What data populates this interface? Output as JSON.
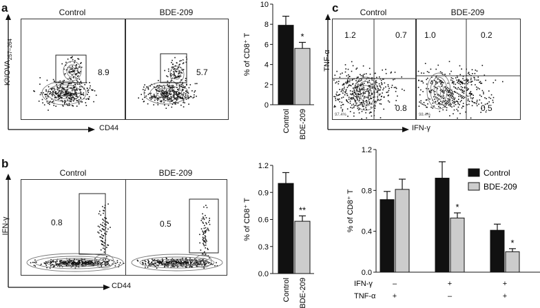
{
  "panels": {
    "a": {
      "letter": "a",
      "flow": {
        "titles": [
          "Control",
          "BDE-209"
        ],
        "gate_values": [
          "8.9",
          "5.7"
        ],
        "ylabel": "Kᵇ/OVA",
        "ylabel_sub": "257–264",
        "xlabel": "CD44"
      }
    },
    "b": {
      "letter": "b",
      "flow": {
        "titles": [
          "Control",
          "BDE-209"
        ],
        "gate_values": [
          "0.8",
          "0.5"
        ],
        "ylabel": "IFN-γ",
        "xlabel": "CD44"
      }
    },
    "c": {
      "letter": "c",
      "flow": {
        "titles": [
          "Control",
          "BDE-209"
        ],
        "quad_values": [
          [
            "1.2",
            "0.7",
            "0.8"
          ],
          [
            "1.0",
            "0.2",
            "0.5"
          ]
        ],
        "small_labels": [
          "97.4%",
          "98.4%"
        ],
        "ylabel": "TNF-α",
        "xlabel": "IFN-γ"
      },
      "group_rows": [
        {
          "label": "IFN-γ",
          "values": [
            "–",
            "+",
            "+"
          ]
        },
        {
          "label": "TNF-α",
          "values": [
            "+",
            "–",
            "+"
          ]
        }
      ]
    }
  },
  "colors": {
    "control": "#111111",
    "bde": "#cccccc"
  },
  "chart_data": [
    {
      "type": "bar",
      "panel": "a",
      "categories": [
        "Control",
        "BDE-209"
      ],
      "values": [
        7.9,
        5.6
      ],
      "errors": [
        0.9,
        0.6
      ],
      "ylabel": "% of CD8⁺ T",
      "ylim": [
        0,
        10
      ],
      "yticks": [
        "0",
        "2",
        "4",
        "6",
        "8",
        "10"
      ],
      "significance": [
        {
          "index": 1,
          "label": "*"
        }
      ]
    },
    {
      "type": "bar",
      "panel": "b",
      "categories": [
        "Control",
        "BDE-209"
      ],
      "values": [
        1.0,
        0.58
      ],
      "errors": [
        0.12,
        0.06
      ],
      "ylabel": "% of CD8⁺ T",
      "ylim": [
        0,
        1.2
      ],
      "yticks": [
        "0.0",
        "0.3",
        "0.6",
        "0.9",
        "1.2"
      ],
      "significance": [
        {
          "index": 1,
          "label": "**"
        }
      ]
    },
    {
      "type": "bar",
      "panel": "c",
      "groups": 3,
      "series": [
        {
          "name": "Control",
          "values": [
            0.71,
            0.92,
            0.41
          ],
          "errors": [
            0.08,
            0.16,
            0.06
          ]
        },
        {
          "name": "BDE-209",
          "values": [
            0.81,
            0.53,
            0.2
          ],
          "errors": [
            0.1,
            0.05,
            0.03
          ]
        }
      ],
      "ylabel": "% of CD8⁺ T",
      "ylim": [
        0,
        1.2
      ],
      "yticks": [
        "0.0",
        "0.4",
        "0.8",
        "1.2"
      ],
      "significance": [
        {
          "group": 1,
          "series": 1,
          "label": "*"
        },
        {
          "group": 2,
          "series": 1,
          "label": "*"
        }
      ],
      "legend": "top-right"
    }
  ]
}
